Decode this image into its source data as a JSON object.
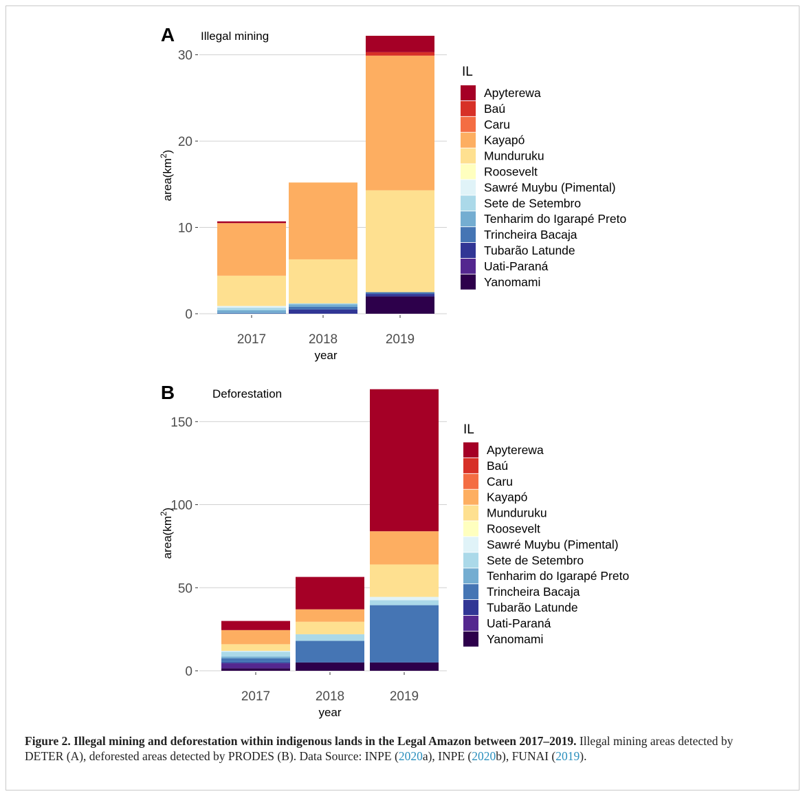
{
  "colors": {
    "Apyterewa": "#a50026",
    "Baú": "#d73027",
    "Caru": "#f46d43",
    "Kayapó": "#fdae61",
    "Munduruku": "#fee090",
    "Roosevelt": "#ffffbf",
    "Sawré Muybu (Pimental)": "#e0f3f8",
    "Sete de Setembro": "#abd9e9",
    "Tenharim do Igarapé Preto": "#74add1",
    "Trincheira Bacaja": "#4575b4",
    "Tubarão Latunde": "#313695",
    "Uati-Paraná": "#54278f",
    "Yanomami": "#2d004b"
  },
  "chart_data": [
    {
      "type": "bar",
      "stacked": true,
      "panel_label": "A",
      "title": "Illegal mining",
      "xlabel": "year",
      "ylabel": "area(km²)",
      "ylabel_base": "area(km",
      "ylabel_sup": "2",
      "ylabel_end": ")",
      "ylim": [
        0,
        32.2
      ],
      "yticks": [
        0,
        10,
        20,
        30
      ],
      "grid": true,
      "legend_title": "IL",
      "legend_position": "right",
      "categories": [
        "2017",
        "2018",
        "2019"
      ],
      "series": [
        {
          "name": "Yanomami",
          "values": [
            0,
            0,
            2.0
          ]
        },
        {
          "name": "Uati-Paraná",
          "values": [
            0,
            0,
            0
          ]
        },
        {
          "name": "Tubarão Latunde",
          "values": [
            0,
            0.5,
            0.3
          ]
        },
        {
          "name": "Trincheira Bacaja",
          "values": [
            0.1,
            0.3,
            0.2
          ]
        },
        {
          "name": "Tenharim do Igarapé Preto",
          "values": [
            0.3,
            0.3,
            0
          ]
        },
        {
          "name": "Sete de Setembro",
          "values": [
            0.3,
            0.1,
            0
          ]
        },
        {
          "name": "Sawré Muybu (Pimental)",
          "values": [
            0.2,
            0,
            0
          ]
        },
        {
          "name": "Roosevelt",
          "values": [
            0,
            0,
            0
          ]
        },
        {
          "name": "Munduruku",
          "values": [
            3.5,
            5.1,
            11.8
          ]
        },
        {
          "name": "Kayapó",
          "values": [
            6.1,
            8.9,
            15.6
          ]
        },
        {
          "name": "Caru",
          "values": [
            0,
            0,
            0
          ]
        },
        {
          "name": "Baú",
          "values": [
            0,
            0,
            0.4
          ]
        },
        {
          "name": "Apyterewa",
          "values": [
            0.2,
            0,
            1.9
          ]
        }
      ]
    },
    {
      "type": "bar",
      "stacked": true,
      "panel_label": "B",
      "title": "Deforestation",
      "xlabel": "year",
      "ylabel": "area(km²)",
      "ylabel_base": "area(km",
      "ylabel_sup": "2",
      "ylabel_end": ")",
      "ylim": [
        0,
        169.8
      ],
      "yticks": [
        0,
        50,
        100,
        150
      ],
      "grid": true,
      "legend_title": "IL",
      "legend_position": "right",
      "categories": [
        "2017",
        "2018",
        "2019"
      ],
      "series": [
        {
          "name": "Yanomami",
          "values": [
            1.5,
            5,
            5
          ]
        },
        {
          "name": "Uati-Paraná",
          "values": [
            3,
            0,
            0
          ]
        },
        {
          "name": "Tubarão Latunde",
          "values": [
            0.5,
            0,
            0
          ]
        },
        {
          "name": "Trincheira Bacaja",
          "values": [
            2.5,
            13,
            34.5
          ]
        },
        {
          "name": "Tenharim do Igarapé Preto",
          "values": [
            1,
            0,
            0
          ]
        },
        {
          "name": "Sete de Setembro",
          "values": [
            3,
            4,
            3
          ]
        },
        {
          "name": "Sawré Muybu (Pimental)",
          "values": [
            0.5,
            0,
            2
          ]
        },
        {
          "name": "Roosevelt",
          "values": [
            0,
            0,
            0
          ]
        },
        {
          "name": "Munduruku",
          "values": [
            4,
            7.5,
            19.5
          ]
        },
        {
          "name": "Kayapó",
          "values": [
            8.5,
            7.5,
            20
          ]
        },
        {
          "name": "Caru",
          "values": [
            0,
            0,
            0
          ]
        },
        {
          "name": "Baú",
          "values": [
            0,
            0,
            0
          ]
        },
        {
          "name": "Apyterewa",
          "values": [
            5.5,
            19.5,
            85.5
          ]
        }
      ]
    }
  ],
  "caption": {
    "bold": "Figure 2. Illegal mining and deforestation within indigenous lands in the Legal Amazon between 2017–2019.",
    "text1": " Illegal mining areas detected by DETER (A), deforested areas detected by PRODES (B). Data Source: INPE (",
    "link1": "2020",
    "text2": "a), INPE (",
    "link2": "2020",
    "text3": "b), FUNAI (",
    "link3": "2019",
    "text4": ")."
  }
}
